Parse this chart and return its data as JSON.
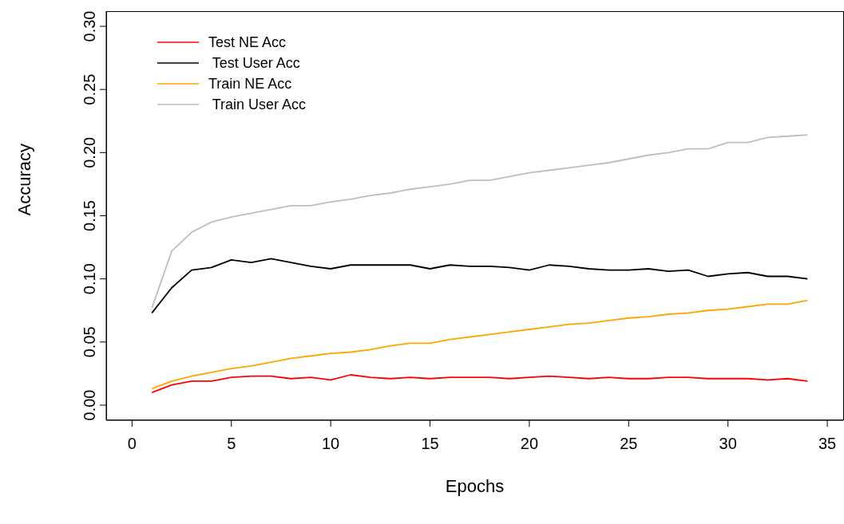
{
  "chart_data": {
    "type": "line",
    "xlabel": "Epochs",
    "ylabel": "Accuracy",
    "x": [
      1,
      2,
      3,
      4,
      5,
      6,
      7,
      8,
      9,
      10,
      11,
      12,
      13,
      14,
      15,
      16,
      17,
      18,
      19,
      20,
      21,
      22,
      23,
      24,
      25,
      26,
      27,
      28,
      29,
      30,
      31,
      32,
      33,
      34
    ],
    "series": [
      {
        "name": "Test NE Acc",
        "color": "#ff0000",
        "values": [
          0.01,
          0.016,
          0.019,
          0.019,
          0.022,
          0.023,
          0.023,
          0.021,
          0.022,
          0.02,
          0.024,
          0.022,
          0.021,
          0.022,
          0.021,
          0.022,
          0.022,
          0.022,
          0.021,
          0.022,
          0.023,
          0.022,
          0.021,
          0.022,
          0.021,
          0.021,
          0.022,
          0.022,
          0.021,
          0.021,
          0.021,
          0.02,
          0.021,
          0.019
        ]
      },
      {
        "name": " Test User Acc",
        "color": "#000000",
        "values": [
          0.073,
          0.093,
          0.107,
          0.109,
          0.115,
          0.113,
          0.116,
          0.113,
          0.11,
          0.108,
          0.111,
          0.111,
          0.111,
          0.111,
          0.108,
          0.111,
          0.11,
          0.11,
          0.109,
          0.107,
          0.111,
          0.11,
          0.108,
          0.107,
          0.107,
          0.108,
          0.106,
          0.107,
          0.102,
          0.104,
          0.105,
          0.102,
          0.102,
          0.1
        ]
      },
      {
        "name": "Train NE Acc",
        "color": "#ffa500",
        "values": [
          0.013,
          0.019,
          0.023,
          0.026,
          0.029,
          0.031,
          0.034,
          0.037,
          0.039,
          0.041,
          0.042,
          0.044,
          0.047,
          0.049,
          0.049,
          0.052,
          0.054,
          0.056,
          0.058,
          0.06,
          0.062,
          0.064,
          0.065,
          0.067,
          0.069,
          0.07,
          0.072,
          0.073,
          0.075,
          0.076,
          0.078,
          0.08,
          0.08,
          0.083
        ]
      },
      {
        "name": " Train User Acc",
        "color": "#bebebe",
        "values": [
          0.077,
          0.122,
          0.137,
          0.145,
          0.149,
          0.152,
          0.155,
          0.158,
          0.158,
          0.161,
          0.163,
          0.166,
          0.168,
          0.171,
          0.173,
          0.175,
          0.178,
          0.178,
          0.181,
          0.184,
          0.186,
          0.188,
          0.19,
          0.192,
          0.195,
          0.198,
          0.2,
          0.203,
          0.203,
          0.208,
          0.208,
          0.212,
          0.213,
          0.214
        ]
      }
    ],
    "xlim": [
      -1.3,
      35.8
    ],
    "xticks": [
      0,
      5,
      10,
      15,
      20,
      25,
      30,
      35
    ],
    "ylim": [
      -0.012,
      0.312
    ],
    "yticks": [
      {
        "value": 0,
        "label": "0.00"
      },
      {
        "value": 0.05,
        "label": "0.05"
      },
      {
        "value": 0.1,
        "label": "0.10"
      },
      {
        "value": 0.15,
        "label": "0.15"
      },
      {
        "value": 0.2,
        "label": "0.20"
      },
      {
        "value": 0.25,
        "label": "0.25"
      },
      {
        "value": 0.3,
        "label": "0.30"
      }
    ],
    "legend": "top left",
    "grid": false,
    "marker": "none",
    "line_style": "solid"
  }
}
